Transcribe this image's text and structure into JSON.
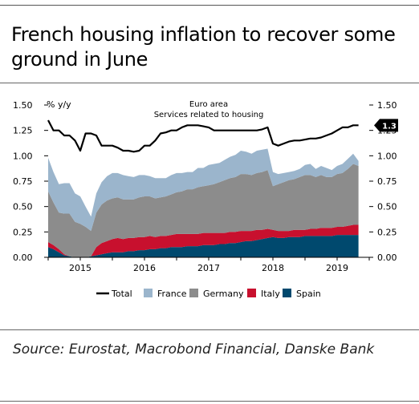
{
  "title": "French housing inflation to recover some ground in June",
  "source": "Source: Eurostat, Macrobond Financial, Danske Bank",
  "chart_data": {
    "type": "area",
    "ylabel": "% y/y",
    "annotation": [
      "Euro area",
      "Services related to housing"
    ],
    "ylim": [
      0,
      1.5
    ],
    "yticks": [
      0,
      0.25,
      0.5,
      0.75,
      1.0,
      1.25,
      1.5
    ],
    "ytick_labels": [
      "0.00",
      "0.25",
      "0.50",
      "0.75",
      "1.00",
      "1.25",
      "1.50"
    ],
    "x_start": 2014.5,
    "x_end": 2019.5,
    "xticks": [
      2015,
      2016,
      2017,
      2018,
      2019
    ],
    "xtick_labels": [
      "2015",
      "2016",
      "2017",
      "2018",
      "2019"
    ],
    "last_value_label": "1.3",
    "legend": {
      "placement": "bottom",
      "entries": [
        "Total",
        "France",
        "Germany",
        "Italy",
        "Spain"
      ]
    },
    "colors": {
      "Total": "#000000",
      "France": "#9bb5cc",
      "Germany": "#8c8c8c",
      "Italy": "#c8102e",
      "Spain": "#00496e",
      "badge": "#000000"
    },
    "x": [
      2014.5,
      2014.583,
      2014.667,
      2014.75,
      2014.833,
      2014.917,
      2015.0,
      2015.083,
      2015.167,
      2015.25,
      2015.333,
      2015.417,
      2015.5,
      2015.583,
      2015.667,
      2015.75,
      2015.833,
      2015.917,
      2016.0,
      2016.083,
      2016.167,
      2016.25,
      2016.333,
      2016.417,
      2016.5,
      2016.583,
      2016.667,
      2016.75,
      2016.833,
      2016.917,
      2017.0,
      2017.083,
      2017.167,
      2017.25,
      2017.333,
      2017.417,
      2017.5,
      2017.583,
      2017.667,
      2017.75,
      2017.833,
      2017.917,
      2018.0,
      2018.083,
      2018.167,
      2018.25,
      2018.333,
      2018.417,
      2018.5,
      2018.583,
      2018.667,
      2018.75,
      2018.833,
      2018.917,
      2019.0,
      2019.083,
      2019.167,
      2019.25,
      2019.333
    ],
    "series": [
      {
        "name": "Spain",
        "values": [
          0.1,
          0.08,
          0.05,
          0.02,
          0.01,
          0.0,
          0.0,
          0.0,
          0.01,
          0.02,
          0.03,
          0.04,
          0.05,
          0.05,
          0.05,
          0.06,
          0.06,
          0.07,
          0.07,
          0.08,
          0.08,
          0.09,
          0.09,
          0.1,
          0.1,
          0.1,
          0.11,
          0.11,
          0.11,
          0.12,
          0.12,
          0.12,
          0.13,
          0.13,
          0.14,
          0.14,
          0.15,
          0.16,
          0.16,
          0.17,
          0.18,
          0.19,
          0.2,
          0.19,
          0.19,
          0.2,
          0.2,
          0.2,
          0.21,
          0.21,
          0.21,
          0.21,
          0.21,
          0.21,
          0.22,
          0.22,
          0.22,
          0.22,
          0.22
        ]
      },
      {
        "name": "Italy",
        "values": [
          0.05,
          0.04,
          0.03,
          0.01,
          0.0,
          0.0,
          0.0,
          0.0,
          0.0,
          0.08,
          0.11,
          0.12,
          0.13,
          0.14,
          0.13,
          0.13,
          0.13,
          0.13,
          0.13,
          0.13,
          0.12,
          0.12,
          0.12,
          0.12,
          0.13,
          0.13,
          0.12,
          0.12,
          0.12,
          0.12,
          0.12,
          0.12,
          0.11,
          0.11,
          0.11,
          0.11,
          0.11,
          0.1,
          0.1,
          0.1,
          0.09,
          0.09,
          0.07,
          0.07,
          0.07,
          0.06,
          0.07,
          0.07,
          0.06,
          0.07,
          0.07,
          0.08,
          0.08,
          0.08,
          0.08,
          0.08,
          0.09,
          0.1,
          0.1
        ]
      },
      {
        "name": "Germany",
        "values": [
          0.5,
          0.42,
          0.36,
          0.4,
          0.42,
          0.35,
          0.33,
          0.3,
          0.25,
          0.34,
          0.38,
          0.4,
          0.4,
          0.4,
          0.39,
          0.38,
          0.38,
          0.39,
          0.4,
          0.39,
          0.38,
          0.38,
          0.39,
          0.4,
          0.41,
          0.42,
          0.44,
          0.44,
          0.46,
          0.46,
          0.47,
          0.48,
          0.5,
          0.52,
          0.53,
          0.54,
          0.56,
          0.56,
          0.55,
          0.56,
          0.57,
          0.58,
          0.43,
          0.46,
          0.48,
          0.5,
          0.5,
          0.52,
          0.54,
          0.53,
          0.51,
          0.52,
          0.5,
          0.5,
          0.52,
          0.53,
          0.56,
          0.6,
          0.58
        ]
      },
      {
        "name": "France",
        "values": [
          0.33,
          0.3,
          0.28,
          0.3,
          0.3,
          0.28,
          0.27,
          0.2,
          0.14,
          0.19,
          0.22,
          0.24,
          0.25,
          0.24,
          0.24,
          0.23,
          0.22,
          0.22,
          0.21,
          0.2,
          0.2,
          0.19,
          0.18,
          0.19,
          0.19,
          0.18,
          0.17,
          0.17,
          0.19,
          0.18,
          0.2,
          0.2,
          0.19,
          0.2,
          0.21,
          0.22,
          0.23,
          0.22,
          0.21,
          0.22,
          0.22,
          0.21,
          0.14,
          0.1,
          0.09,
          0.08,
          0.08,
          0.08,
          0.1,
          0.11,
          0.08,
          0.09,
          0.09,
          0.07,
          0.08,
          0.09,
          0.1,
          0.1,
          0.05
        ]
      },
      {
        "name": "Total",
        "values": [
          1.35,
          1.25,
          1.25,
          1.2,
          1.2,
          1.15,
          1.05,
          1.22,
          1.22,
          1.2,
          1.1,
          1.1,
          1.1,
          1.08,
          1.05,
          1.05,
          1.04,
          1.05,
          1.1,
          1.1,
          1.15,
          1.22,
          1.23,
          1.25,
          1.25,
          1.28,
          1.3,
          1.3,
          1.3,
          1.29,
          1.28,
          1.25,
          1.25,
          1.25,
          1.25,
          1.25,
          1.25,
          1.25,
          1.25,
          1.25,
          1.26,
          1.28,
          1.12,
          1.1,
          1.12,
          1.14,
          1.15,
          1.15,
          1.16,
          1.17,
          1.17,
          1.18,
          1.2,
          1.22,
          1.25,
          1.28,
          1.28,
          1.3,
          1.3
        ]
      }
    ]
  }
}
